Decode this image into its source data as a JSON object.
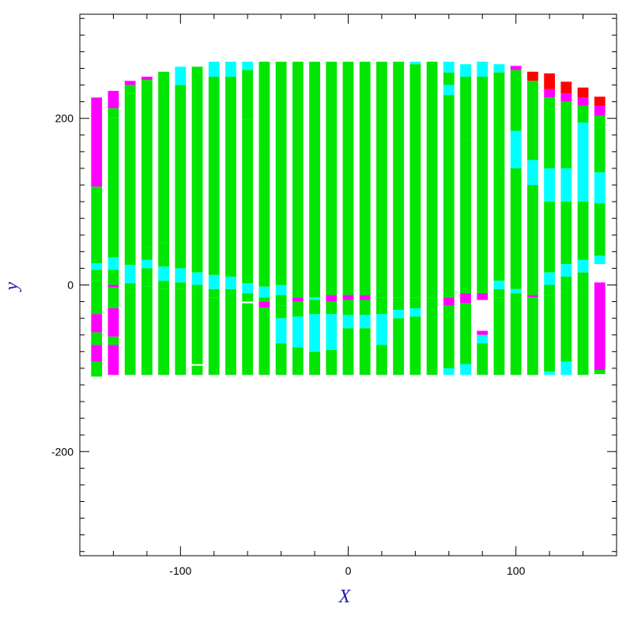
{
  "chart_data": {
    "type": "heatmap",
    "title": "",
    "xlabel": "X",
    "ylabel": "y",
    "xlim": [
      -160,
      160
    ],
    "ylim": [
      -325,
      325
    ],
    "xticks": [
      -100,
      0,
      100
    ],
    "yticks": [
      -200,
      0,
      200
    ],
    "minor_tick_step": 20,
    "grid": false,
    "column_width": 6.5,
    "colors": {
      "g": "#00e600",
      "c": "#00ffff",
      "m": "#ff00ff",
      "r": "#ff0000"
    },
    "columns": [
      {
        "x": -150,
        "segments": [
          [
            118,
            225,
            "m"
          ],
          [
            26,
            118,
            "g"
          ],
          [
            18,
            26,
            "c"
          ],
          [
            5,
            18,
            "g"
          ],
          [
            -10,
            5,
            "g"
          ],
          [
            -35,
            -10,
            "g"
          ],
          [
            -57,
            -35,
            "m"
          ],
          [
            -72,
            -57,
            "g"
          ],
          [
            -92,
            -72,
            "m"
          ],
          [
            -110,
            -92,
            "g"
          ]
        ]
      },
      {
        "x": -140,
        "segments": [
          [
            212,
            233,
            "m"
          ],
          [
            200,
            212,
            "g"
          ],
          [
            33,
            200,
            "g"
          ],
          [
            18,
            33,
            "c"
          ],
          [
            0,
            18,
            "g"
          ],
          [
            -3,
            0,
            "m"
          ],
          [
            -28,
            -3,
            "g"
          ],
          [
            -62,
            -28,
            "m"
          ],
          [
            -72,
            -62,
            "g"
          ],
          [
            -108,
            -72,
            "m"
          ]
        ]
      },
      {
        "x": -130,
        "segments": [
          [
            240,
            245,
            "m"
          ],
          [
            230,
            240,
            "g"
          ],
          [
            24,
            230,
            "g"
          ],
          [
            2,
            24,
            "c"
          ],
          [
            -8,
            2,
            "g"
          ],
          [
            -108,
            -8,
            "g"
          ]
        ]
      },
      {
        "x": -120,
        "segments": [
          [
            246,
            250,
            "m"
          ],
          [
            45,
            246,
            "g"
          ],
          [
            30,
            45,
            "g"
          ],
          [
            20,
            30,
            "c"
          ],
          [
            -2,
            20,
            "g"
          ],
          [
            -108,
            -2,
            "g"
          ]
        ]
      },
      {
        "x": -110,
        "segments": [
          [
            75,
            256,
            "g"
          ],
          [
            50,
            75,
            "g"
          ],
          [
            22,
            50,
            "g"
          ],
          [
            5,
            22,
            "c"
          ],
          [
            -5,
            5,
            "g"
          ],
          [
            -108,
            -5,
            "g"
          ]
        ]
      },
      {
        "x": -100,
        "segments": [
          [
            240,
            262,
            "c"
          ],
          [
            20,
            240,
            "g"
          ],
          [
            3,
            20,
            "c"
          ],
          [
            -5,
            3,
            "g"
          ],
          [
            -108,
            -5,
            "g"
          ]
        ]
      },
      {
        "x": -90,
        "segments": [
          [
            242,
            262,
            "g"
          ],
          [
            15,
            242,
            "g"
          ],
          [
            0,
            15,
            "c"
          ],
          [
            -10,
            0,
            "g"
          ],
          [
            -95,
            -10,
            "g"
          ],
          [
            -108,
            -97,
            "g"
          ]
        ]
      },
      {
        "x": -80,
        "segments": [
          [
            250,
            268,
            "c"
          ],
          [
            12,
            250,
            "g"
          ],
          [
            -5,
            12,
            "c"
          ],
          [
            -15,
            -5,
            "g"
          ],
          [
            -108,
            -15,
            "g"
          ]
        ]
      },
      {
        "x": -70,
        "segments": [
          [
            250,
            268,
            "c"
          ],
          [
            10,
            250,
            "g"
          ],
          [
            -5,
            10,
            "c"
          ],
          [
            -18,
            -5,
            "g"
          ],
          [
            -108,
            -18,
            "g"
          ]
        ]
      },
      {
        "x": -60,
        "segments": [
          [
            258,
            268,
            "c"
          ],
          [
            198,
            258,
            "g"
          ],
          [
            130,
            198,
            "g"
          ],
          [
            2,
            130,
            "g"
          ],
          [
            -10,
            2,
            "c"
          ],
          [
            -20,
            -10,
            "g"
          ],
          [
            -108,
            -22,
            "g"
          ]
        ]
      },
      {
        "x": -50,
        "segments": [
          [
            168,
            268,
            "g"
          ],
          [
            120,
            168,
            "g"
          ],
          [
            -2,
            120,
            "g"
          ],
          [
            -15,
            -2,
            "c"
          ],
          [
            -20,
            -15,
            "g"
          ],
          [
            -27,
            -20,
            "m"
          ],
          [
            -108,
            -27,
            "g"
          ]
        ]
      },
      {
        "x": -40,
        "segments": [
          [
            0,
            268,
            "g"
          ],
          [
            -12,
            0,
            "c"
          ],
          [
            -25,
            -12,
            "g"
          ],
          [
            -40,
            -25,
            "g"
          ],
          [
            -70,
            -40,
            "c"
          ],
          [
            -108,
            -70,
            "g"
          ]
        ]
      },
      {
        "x": -30,
        "segments": [
          [
            -15,
            268,
            "g"
          ],
          [
            -20,
            -15,
            "m"
          ],
          [
            -38,
            -20,
            "g"
          ],
          [
            -75,
            -38,
            "c"
          ],
          [
            -108,
            -75,
            "g"
          ]
        ]
      },
      {
        "x": -20,
        "segments": [
          [
            -15,
            268,
            "g"
          ],
          [
            -18,
            -15,
            "c"
          ],
          [
            -35,
            -18,
            "g"
          ],
          [
            -80,
            -35,
            "c"
          ],
          [
            -108,
            -80,
            "g"
          ]
        ]
      },
      {
        "x": -10,
        "segments": [
          [
            -12,
            268,
            "g"
          ],
          [
            -20,
            -12,
            "m"
          ],
          [
            -35,
            -20,
            "g"
          ],
          [
            -78,
            -35,
            "c"
          ],
          [
            -108,
            -78,
            "g"
          ]
        ]
      },
      {
        "x": 0,
        "segments": [
          [
            -12,
            268,
            "g"
          ],
          [
            -18,
            -12,
            "m"
          ],
          [
            -36,
            -18,
            "g"
          ],
          [
            -52,
            -36,
            "c"
          ],
          [
            -108,
            -52,
            "g"
          ]
        ]
      },
      {
        "x": 10,
        "segments": [
          [
            -12,
            268,
            "g"
          ],
          [
            -18,
            -12,
            "m"
          ],
          [
            -36,
            -18,
            "g"
          ],
          [
            -52,
            -36,
            "c"
          ],
          [
            -108,
            -52,
            "g"
          ]
        ]
      },
      {
        "x": 20,
        "segments": [
          [
            -15,
            268,
            "g"
          ],
          [
            -35,
            -15,
            "g"
          ],
          [
            -72,
            -35,
            "c"
          ],
          [
            -108,
            -72,
            "g"
          ]
        ]
      },
      {
        "x": 30,
        "segments": [
          [
            -15,
            268,
            "g"
          ],
          [
            -30,
            -15,
            "g"
          ],
          [
            -40,
            -30,
            "c"
          ],
          [
            -108,
            -40,
            "g"
          ]
        ]
      },
      {
        "x": 40,
        "segments": [
          [
            265,
            268,
            "c"
          ],
          [
            -15,
            265,
            "g"
          ],
          [
            -28,
            -15,
            "g"
          ],
          [
            -38,
            -28,
            "c"
          ],
          [
            -108,
            -38,
            "g"
          ]
        ]
      },
      {
        "x": 50,
        "segments": [
          [
            -15,
            268,
            "g"
          ],
          [
            -28,
            -15,
            "g"
          ],
          [
            -108,
            -28,
            "g"
          ]
        ]
      },
      {
        "x": 60,
        "segments": [
          [
            255,
            268,
            "c"
          ],
          [
            240,
            255,
            "g"
          ],
          [
            228,
            240,
            "c"
          ],
          [
            -15,
            228,
            "g"
          ],
          [
            -25,
            -15,
            "m"
          ],
          [
            -100,
            -25,
            "g"
          ],
          [
            -108,
            -100,
            "c"
          ]
        ]
      },
      {
        "x": 70,
        "segments": [
          [
            250,
            265,
            "c"
          ],
          [
            175,
            250,
            "g"
          ],
          [
            -10,
            175,
            "g"
          ],
          [
            -22,
            -10,
            "m"
          ],
          [
            -95,
            -22,
            "g"
          ],
          [
            -108,
            -95,
            "c"
          ]
        ]
      },
      {
        "x": 80,
        "segments": [
          [
            250,
            268,
            "c"
          ],
          [
            185,
            250,
            "g"
          ],
          [
            -10,
            185,
            "g"
          ],
          [
            -18,
            -10,
            "m"
          ],
          [
            -60,
            -55,
            "m"
          ],
          [
            -70,
            -60,
            "c"
          ],
          [
            -108,
            -70,
            "g"
          ]
        ]
      },
      {
        "x": 90,
        "segments": [
          [
            255,
            265,
            "c"
          ],
          [
            148,
            255,
            "g"
          ],
          [
            5,
            148,
            "g"
          ],
          [
            -5,
            5,
            "c"
          ],
          [
            -15,
            -5,
            "g"
          ],
          [
            -108,
            -15,
            "g"
          ]
        ]
      },
      {
        "x": 100,
        "segments": [
          [
            258,
            263,
            "m"
          ],
          [
            185,
            258,
            "g"
          ],
          [
            140,
            185,
            "c"
          ],
          [
            -5,
            140,
            "g"
          ],
          [
            -10,
            -5,
            "c"
          ],
          [
            -108,
            -10,
            "g"
          ]
        ]
      },
      {
        "x": 110,
        "segments": [
          [
            245,
            256,
            "r"
          ],
          [
            150,
            245,
            "g"
          ],
          [
            120,
            150,
            "c"
          ],
          [
            -12,
            120,
            "g"
          ],
          [
            -15,
            -12,
            "m"
          ],
          [
            -108,
            -15,
            "g"
          ]
        ]
      },
      {
        "x": 120,
        "segments": [
          [
            235,
            254,
            "r"
          ],
          [
            225,
            235,
            "m"
          ],
          [
            140,
            225,
            "g"
          ],
          [
            100,
            140,
            "c"
          ],
          [
            15,
            100,
            "g"
          ],
          [
            0,
            15,
            "c"
          ],
          [
            -12,
            0,
            "g"
          ],
          [
            -104,
            -12,
            "g"
          ],
          [
            -108,
            -104,
            "c"
          ]
        ]
      },
      {
        "x": 130,
        "segments": [
          [
            230,
            244,
            "r"
          ],
          [
            220,
            230,
            "m"
          ],
          [
            140,
            220,
            "g"
          ],
          [
            100,
            140,
            "c"
          ],
          [
            25,
            100,
            "g"
          ],
          [
            10,
            25,
            "c"
          ],
          [
            -8,
            10,
            "g"
          ],
          [
            -92,
            -8,
            "g"
          ],
          [
            -108,
            -92,
            "c"
          ]
        ]
      },
      {
        "x": 140,
        "segments": [
          [
            225,
            237,
            "r"
          ],
          [
            215,
            225,
            "m"
          ],
          [
            195,
            215,
            "g"
          ],
          [
            140,
            195,
            "c"
          ],
          [
            100,
            140,
            "c"
          ],
          [
            30,
            100,
            "g"
          ],
          [
            15,
            30,
            "c"
          ],
          [
            -10,
            15,
            "g"
          ],
          [
            -108,
            -10,
            "g"
          ]
        ]
      },
      {
        "x": 150,
        "segments": [
          [
            215,
            226,
            "r"
          ],
          [
            203,
            215,
            "m"
          ],
          [
            135,
            203,
            "g"
          ],
          [
            98,
            135,
            "c"
          ],
          [
            35,
            98,
            "g"
          ],
          [
            25,
            35,
            "c"
          ],
          [
            -102,
            3,
            "m"
          ],
          [
            -107,
            -102,
            "g"
          ]
        ]
      }
    ]
  }
}
